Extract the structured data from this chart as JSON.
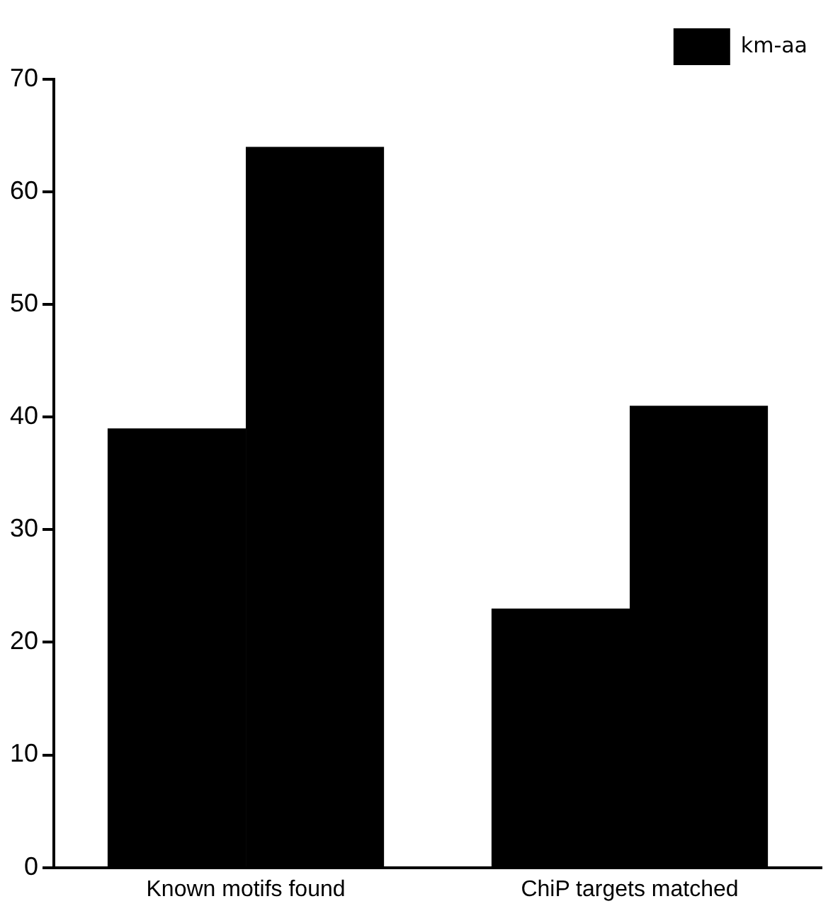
{
  "chart_data": {
    "type": "bar",
    "categories": [
      "Known motifs found",
      "ChiP targets matched"
    ],
    "series": [
      {
        "name": "km-aa",
        "color": "#000000",
        "values": [
          39,
          23
        ]
      },
      {
        "color": "#000000",
        "values": [
          64,
          41
        ]
      }
    ],
    "ylim": [
      0,
      70
    ],
    "yticks": [
      0,
      10,
      20,
      30,
      40,
      50,
      60,
      70
    ],
    "grid": false,
    "legend": "top right"
  }
}
